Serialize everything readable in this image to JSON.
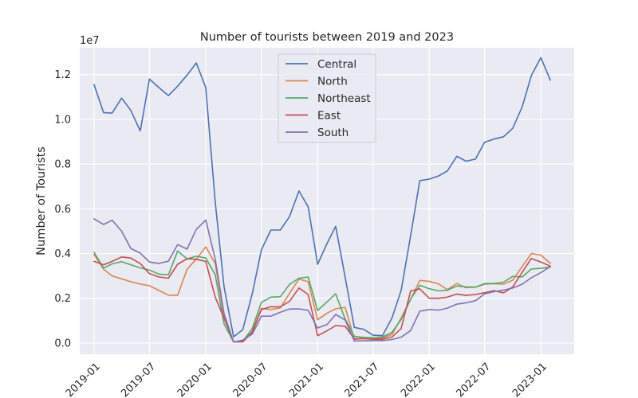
{
  "chart_data": {
    "type": "line",
    "title": "Number of tourists between 2019 and 2023",
    "xlabel": "",
    "ylabel": "Number of Tourists",
    "y_offset_label": "1e7",
    "x": [
      "2019-01",
      "2019-02",
      "2019-03",
      "2019-04",
      "2019-05",
      "2019-06",
      "2019-07",
      "2019-08",
      "2019-09",
      "2019-10",
      "2019-11",
      "2019-12",
      "2020-01",
      "2020-02",
      "2020-03",
      "2020-04",
      "2020-05",
      "2020-06",
      "2020-07",
      "2020-08",
      "2020-09",
      "2020-10",
      "2020-11",
      "2020-12",
      "2021-01",
      "2021-02",
      "2021-03",
      "2021-04",
      "2021-05",
      "2021-06",
      "2021-07",
      "2021-08",
      "2021-09",
      "2021-10",
      "2021-11",
      "2021-12",
      "2022-01",
      "2022-02",
      "2022-03",
      "2022-04",
      "2022-05",
      "2022-06",
      "2022-07",
      "2022-08",
      "2022-09",
      "2022-10",
      "2022-11",
      "2022-12",
      "2023-01",
      "2023-02"
    ],
    "xlim": [
      "2018-11-15",
      "2023-04-20"
    ],
    "x_ticks": [
      "2019-01",
      "2019-07",
      "2020-01",
      "2020-07",
      "2021-01",
      "2021-07",
      "2022-01",
      "2022-07",
      "2023-01"
    ],
    "ylim": [
      -500000,
      13200000
    ],
    "y_ticks": [
      0,
      2000000,
      4000000,
      6000000,
      8000000,
      10000000,
      12000000
    ],
    "y_tick_labels": [
      "0.0",
      "0.2",
      "0.4",
      "0.6",
      "0.8",
      "1.0",
      "1.2"
    ],
    "grid": true,
    "legend_position": "upper center",
    "series": [
      {
        "name": "Central",
        "color": "#4c72b0",
        "values": [
          11550000,
          10300000,
          10280000,
          10950000,
          10400000,
          9480000,
          11800000,
          11420000,
          11060000,
          11480000,
          11980000,
          12520000,
          11420000,
          6300000,
          2500000,
          280000,
          600000,
          2200000,
          4170000,
          5050000,
          5050000,
          5650000,
          6800000,
          6090000,
          3520000,
          4460000,
          5220000,
          2940000,
          700000,
          610000,
          350000,
          330000,
          1120000,
          2350000,
          4800000,
          7260000,
          7330000,
          7470000,
          7690000,
          8350000,
          8130000,
          8220000,
          8980000,
          9120000,
          9220000,
          9600000,
          10560000,
          11960000,
          12760000,
          11750000
        ]
      },
      {
        "name": "North",
        "color": "#dd8452",
        "values": [
          3950000,
          3300000,
          3000000,
          2870000,
          2740000,
          2640000,
          2560000,
          2350000,
          2140000,
          2130000,
          3300000,
          3750000,
          4300000,
          3550000,
          1150000,
          60000,
          70000,
          520000,
          1550000,
          1500000,
          1570000,
          2220000,
          2860000,
          2740000,
          1040000,
          1340000,
          1530000,
          1600000,
          170000,
          200000,
          180000,
          220000,
          380000,
          1120000,
          1950000,
          2800000,
          2760000,
          2640000,
          2390000,
          2660000,
          2470000,
          2500000,
          2630000,
          2650000,
          2630000,
          2810000,
          3420000,
          4000000,
          3930000,
          3560000
        ]
      },
      {
        "name": "Northeast",
        "color": "#55a868",
        "values": [
          4050000,
          3350000,
          3540000,
          3640000,
          3500000,
          3360000,
          3260000,
          3080000,
          3050000,
          4110000,
          3760000,
          3880000,
          3800000,
          3050000,
          850000,
          50000,
          80000,
          650000,
          1820000,
          2050000,
          2070000,
          2620000,
          2900000,
          2950000,
          1460000,
          1840000,
          2200000,
          1070000,
          300000,
          250000,
          240000,
          270000,
          480000,
          1050000,
          1970000,
          2580000,
          2430000,
          2330000,
          2360000,
          2550000,
          2510000,
          2500000,
          2660000,
          2660000,
          2720000,
          2980000,
          2950000,
          3310000,
          3340000,
          3400000
        ]
      },
      {
        "name": "East",
        "color": "#c44e52",
        "values": [
          3650000,
          3500000,
          3650000,
          3850000,
          3800000,
          3550000,
          3100000,
          2950000,
          2900000,
          3520000,
          3770000,
          3740000,
          3650000,
          2050000,
          1100000,
          50000,
          50000,
          480000,
          1500000,
          1620000,
          1620000,
          1860000,
          2460000,
          2170000,
          330000,
          550000,
          780000,
          750000,
          190000,
          200000,
          170000,
          170000,
          270000,
          650000,
          2330000,
          2420000,
          2000000,
          2000000,
          2050000,
          2190000,
          2130000,
          2170000,
          2250000,
          2340000,
          2240000,
          2510000,
          3160000,
          3780000,
          3620000,
          3440000
        ]
      },
      {
        "name": "South",
        "color": "#8172b3",
        "values": [
          5550000,
          5300000,
          5490000,
          5000000,
          4230000,
          4020000,
          3620000,
          3560000,
          3660000,
          4400000,
          4200000,
          5080000,
          5500000,
          3750000,
          1300000,
          40000,
          130000,
          400000,
          1200000,
          1200000,
          1380000,
          1520000,
          1530000,
          1460000,
          670000,
          830000,
          1280000,
          1030000,
          90000,
          100000,
          110000,
          110000,
          160000,
          260000,
          560000,
          1420000,
          1500000,
          1470000,
          1560000,
          1740000,
          1800000,
          1890000,
          2200000,
          2300000,
          2360000,
          2460000,
          2630000,
          2920000,
          3150000,
          3420000
        ]
      }
    ]
  }
}
